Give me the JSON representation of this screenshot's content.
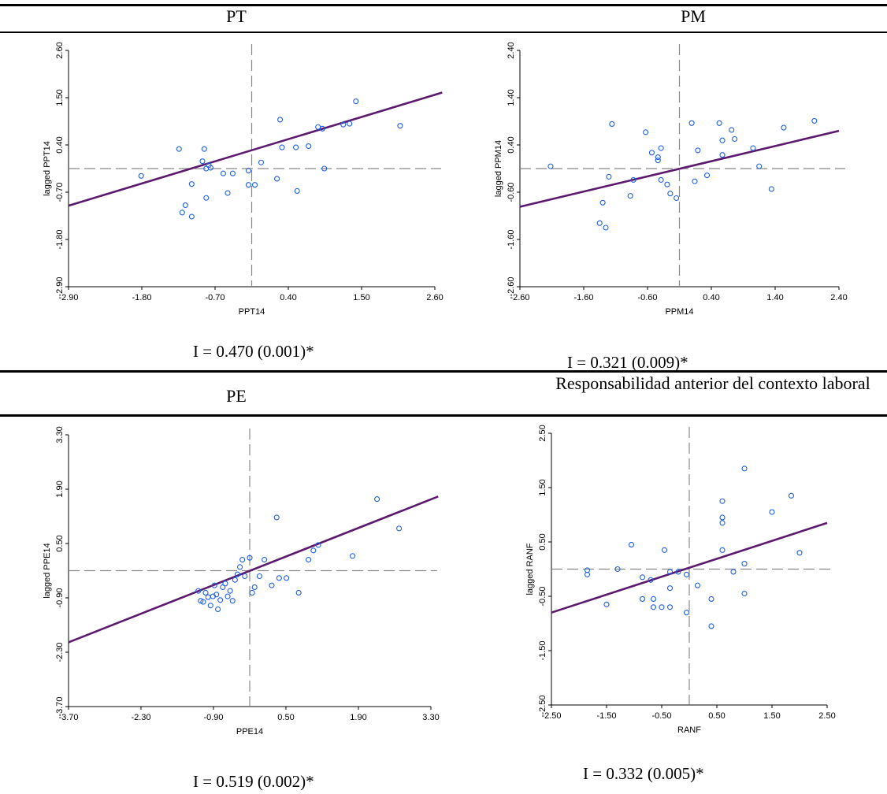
{
  "headers": {
    "tl": "PT",
    "tr": "PM",
    "bl": "PE",
    "br": "Responsabilidad anterior del contexto laboral"
  },
  "cutoff_top_text": "",
  "cutoff_pm_text": "",
  "chart_data": [
    {
      "type": "scatter",
      "xlabel": "PPT14",
      "ylabel": "lagged PPT14",
      "xlim": [
        -2.9,
        2.9
      ],
      "ylim": [
        -2.9,
        2.9
      ],
      "xticks": [
        "-2.90",
        "-1.80",
        "-0.70",
        "0.40",
        "1.50",
        "2.60"
      ],
      "yticks": [
        "-2.90",
        "-1.80",
        "-0.70",
        "0.40",
        "1.50",
        "2.60"
      ],
      "fit_line": [
        [
          -3.9,
          -1.38
        ],
        [
          3.9,
          2.28
        ]
      ],
      "stat": "I = 0.470 (0.001)*",
      "points": [
        [
          -1.75,
          -0.18
        ],
        [
          -1.15,
          0.48
        ],
        [
          -1.05,
          -0.9
        ],
        [
          -1.1,
          -1.08
        ],
        [
          -0.95,
          -1.18
        ],
        [
          -0.95,
          -0.38
        ],
        [
          -0.75,
          0.48
        ],
        [
          -0.78,
          0.18
        ],
        [
          -0.72,
          0.0
        ],
        [
          -0.68,
          0.08
        ],
        [
          -0.65,
          0.02
        ],
        [
          -0.72,
          -0.72
        ],
        [
          -0.45,
          -0.12
        ],
        [
          -0.38,
          -0.6
        ],
        [
          -0.3,
          -0.12
        ],
        [
          -0.05,
          -0.05
        ],
        [
          -0.05,
          -0.4
        ],
        [
          0.05,
          -0.4
        ],
        [
          0.15,
          0.15
        ],
        [
          0.4,
          -0.25
        ],
        [
          0.45,
          1.2
        ],
        [
          0.48,
          0.52
        ],
        [
          0.7,
          0.52
        ],
        [
          0.72,
          -0.55
        ],
        [
          0.9,
          0.55
        ],
        [
          1.05,
          1.02
        ],
        [
          1.12,
          0.98
        ],
        [
          1.15,
          0.0
        ],
        [
          1.45,
          1.08
        ],
        [
          1.55,
          1.1
        ],
        [
          1.65,
          1.65
        ],
        [
          2.35,
          1.05
        ]
      ]
    },
    {
      "type": "scatter",
      "xlabel": "PPM14",
      "ylabel": "lagged PPM14",
      "xlim": [
        -2.6,
        2.6
      ],
      "ylim": [
        -2.6,
        2.6
      ],
      "xticks": [
        "-2.60",
        "-1.60",
        "-0.60",
        "0.40",
        "1.40",
        "2.40"
      ],
      "yticks": [
        "-2.60",
        "-1.60",
        "-0.60",
        "0.40",
        "1.40",
        "2.40"
      ],
      "fit_line": [
        [
          -2.6,
          -0.84
        ],
        [
          2.6,
          0.83
        ]
      ],
      "stat": "I = 0.321 (0.009)*",
      "points": [
        [
          -2.1,
          0.05
        ],
        [
          -1.3,
          -1.2
        ],
        [
          -1.25,
          -0.75
        ],
        [
          -1.2,
          -1.3
        ],
        [
          -1.15,
          -0.18
        ],
        [
          -1.1,
          0.98
        ],
        [
          -0.8,
          -0.6
        ],
        [
          -0.75,
          -0.25
        ],
        [
          -0.55,
          0.8
        ],
        [
          -0.45,
          0.35
        ],
        [
          -0.35,
          0.25
        ],
        [
          -0.35,
          0.18
        ],
        [
          -0.3,
          0.45
        ],
        [
          -0.3,
          -0.25
        ],
        [
          -0.2,
          -0.35
        ],
        [
          -0.15,
          -0.55
        ],
        [
          -0.05,
          -0.65
        ],
        [
          0.2,
          1.0
        ],
        [
          0.25,
          -0.28
        ],
        [
          0.3,
          0.4
        ],
        [
          0.45,
          -0.15
        ],
        [
          0.65,
          1.0
        ],
        [
          0.7,
          0.62
        ],
        [
          0.7,
          0.3
        ],
        [
          0.85,
          0.85
        ],
        [
          0.9,
          0.65
        ],
        [
          1.2,
          0.45
        ],
        [
          1.3,
          0.05
        ],
        [
          1.5,
          -0.45
        ],
        [
          1.7,
          0.9
        ],
        [
          2.2,
          1.05
        ]
      ]
    },
    {
      "type": "scatter",
      "xlabel": "PPE14",
      "ylabel": "lagged PPE14",
      "xlim": [
        -3.7,
        3.7
      ],
      "ylim": [
        -3.7,
        3.7
      ],
      "xticks": [
        "-3.70",
        "-2.30",
        "-0.90",
        "0.50",
        "1.90",
        "3.30"
      ],
      "yticks": [
        "-3.70",
        "-2.30",
        "-0.90",
        "0.50",
        "1.90",
        "3.30"
      ],
      "fit_line": [
        [
          -3.7,
          -1.95
        ],
        [
          4.0,
          2.1
        ]
      ],
      "stat": "I = 0.519 (0.002)*",
      "points": [
        [
          -1.05,
          -0.55
        ],
        [
          -1.0,
          -0.82
        ],
        [
          -0.95,
          -0.85
        ],
        [
          -0.9,
          -0.6
        ],
        [
          -0.85,
          -0.72
        ],
        [
          -0.8,
          -0.95
        ],
        [
          -0.75,
          -0.7
        ],
        [
          -0.72,
          -0.4
        ],
        [
          -0.68,
          -0.65
        ],
        [
          -0.65,
          -1.05
        ],
        [
          -0.6,
          -0.8
        ],
        [
          -0.55,
          -0.45
        ],
        [
          -0.5,
          -0.35
        ],
        [
          -0.45,
          -0.7
        ],
        [
          -0.4,
          -0.55
        ],
        [
          -0.35,
          -0.82
        ],
        [
          -0.3,
          -0.25
        ],
        [
          -0.25,
          -0.1
        ],
        [
          -0.2,
          0.1
        ],
        [
          -0.15,
          0.3
        ],
        [
          -0.1,
          -0.15
        ],
        [
          0.0,
          0.35
        ],
        [
          0.05,
          -0.6
        ],
        [
          0.1,
          -0.45
        ],
        [
          0.2,
          -0.15
        ],
        [
          0.3,
          0.3
        ],
        [
          0.45,
          -0.4
        ],
        [
          0.55,
          1.45
        ],
        [
          0.6,
          -0.2
        ],
        [
          0.75,
          -0.2
        ],
        [
          1.0,
          -0.6
        ],
        [
          1.2,
          0.3
        ],
        [
          1.3,
          0.55
        ],
        [
          1.4,
          0.7
        ],
        [
          2.1,
          0.4
        ],
        [
          2.6,
          1.95
        ],
        [
          3.05,
          1.15
        ]
      ]
    },
    {
      "type": "scatter",
      "xlabel": "RANF",
      "ylabel": "lagged RANF",
      "xlim": [
        -2.5,
        2.5
      ],
      "ylim": [
        -2.5,
        2.5
      ],
      "xticks": [
        "-2.50",
        "-1.50",
        "-0.50",
        "0.50",
        "1.50",
        "2.50"
      ],
      "yticks": [
        "-2.50",
        "-1.50",
        "-0.50",
        "0.50",
        "1.50",
        "2.50"
      ],
      "fit_line": [
        [
          -2.5,
          -0.8
        ],
        [
          2.5,
          0.85
        ]
      ],
      "stat": "I = 0.332 (0.005)*",
      "points": [
        [
          -1.85,
          -0.02
        ],
        [
          -1.85,
          -0.1
        ],
        [
          -1.5,
          -0.65
        ],
        [
          -1.3,
          0.0
        ],
        [
          -1.05,
          0.45
        ],
        [
          -0.85,
          -0.15
        ],
        [
          -0.85,
          -0.55
        ],
        [
          -0.7,
          -0.2
        ],
        [
          -0.65,
          -0.55
        ],
        [
          -0.65,
          -0.7
        ],
        [
          -0.5,
          -0.7
        ],
        [
          -0.45,
          0.35
        ],
        [
          -0.35,
          -0.05
        ],
        [
          -0.35,
          -0.35
        ],
        [
          -0.35,
          -0.7
        ],
        [
          -0.2,
          -0.05
        ],
        [
          -0.05,
          -0.1
        ],
        [
          -0.05,
          -0.8
        ],
        [
          0.15,
          -0.3
        ],
        [
          0.4,
          -0.55
        ],
        [
          0.4,
          -1.05
        ],
        [
          0.6,
          1.25
        ],
        [
          0.6,
          0.95
        ],
        [
          0.6,
          0.85
        ],
        [
          0.6,
          0.35
        ],
        [
          0.8,
          -0.05
        ],
        [
          1.0,
          1.85
        ],
        [
          1.0,
          0.1
        ],
        [
          1.0,
          -0.45
        ],
        [
          1.5,
          1.05
        ],
        [
          1.85,
          1.35
        ],
        [
          2.0,
          0.3
        ]
      ]
    }
  ]
}
